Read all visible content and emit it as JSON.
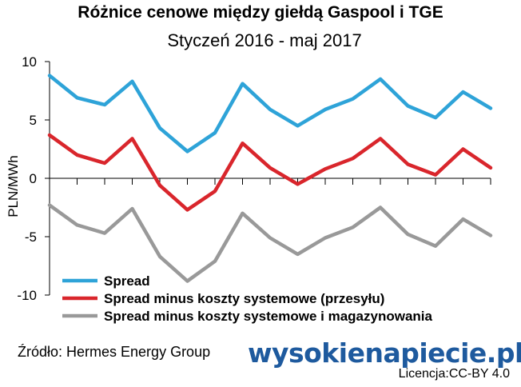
{
  "chart_data": {
    "type": "line",
    "title": "Różnice cenowe między giełdą Gaspool i TGE",
    "subtitle": "Styczeń 2016 - maj 2017",
    "ylabel": "PLN/MWh",
    "ylim": [
      -10,
      10
    ],
    "yticks": [
      "10",
      "5",
      "0",
      "-5",
      "-10"
    ],
    "x_count": 17,
    "grid": false,
    "legend_position": "bottom-left",
    "series": [
      {
        "name": "Spread",
        "color": "#2ea3d8",
        "values": [
          8.8,
          6.9,
          6.3,
          8.3,
          4.3,
          2.3,
          3.9,
          8.1,
          5.9,
          4.5,
          5.9,
          6.8,
          8.5,
          6.2,
          5.2,
          7.4,
          6.0
        ]
      },
      {
        "name": "Spread minus koszty systemowe (przesyłu)",
        "color": "#d9262c",
        "values": [
          3.7,
          2.0,
          1.3,
          3.4,
          -0.6,
          -2.7,
          -1.1,
          3.0,
          0.9,
          -0.5,
          0.8,
          1.7,
          3.4,
          1.2,
          0.3,
          2.5,
          0.9
        ]
      },
      {
        "name": "Spread minus koszty systemowe i magazynowania",
        "color": "#999999",
        "values": [
          -2.3,
          -4.0,
          -4.7,
          -2.6,
          -6.7,
          -8.8,
          -7.1,
          -3.0,
          -5.1,
          -6.5,
          -5.1,
          -4.2,
          -2.5,
          -4.8,
          -5.8,
          -3.5,
          -4.9
        ]
      }
    ]
  },
  "footer": {
    "source": "Źródło: Hermes Energy Group",
    "logo": "wysokienapiecie.pl",
    "license": "Licencja:CC-BY 4.0"
  }
}
